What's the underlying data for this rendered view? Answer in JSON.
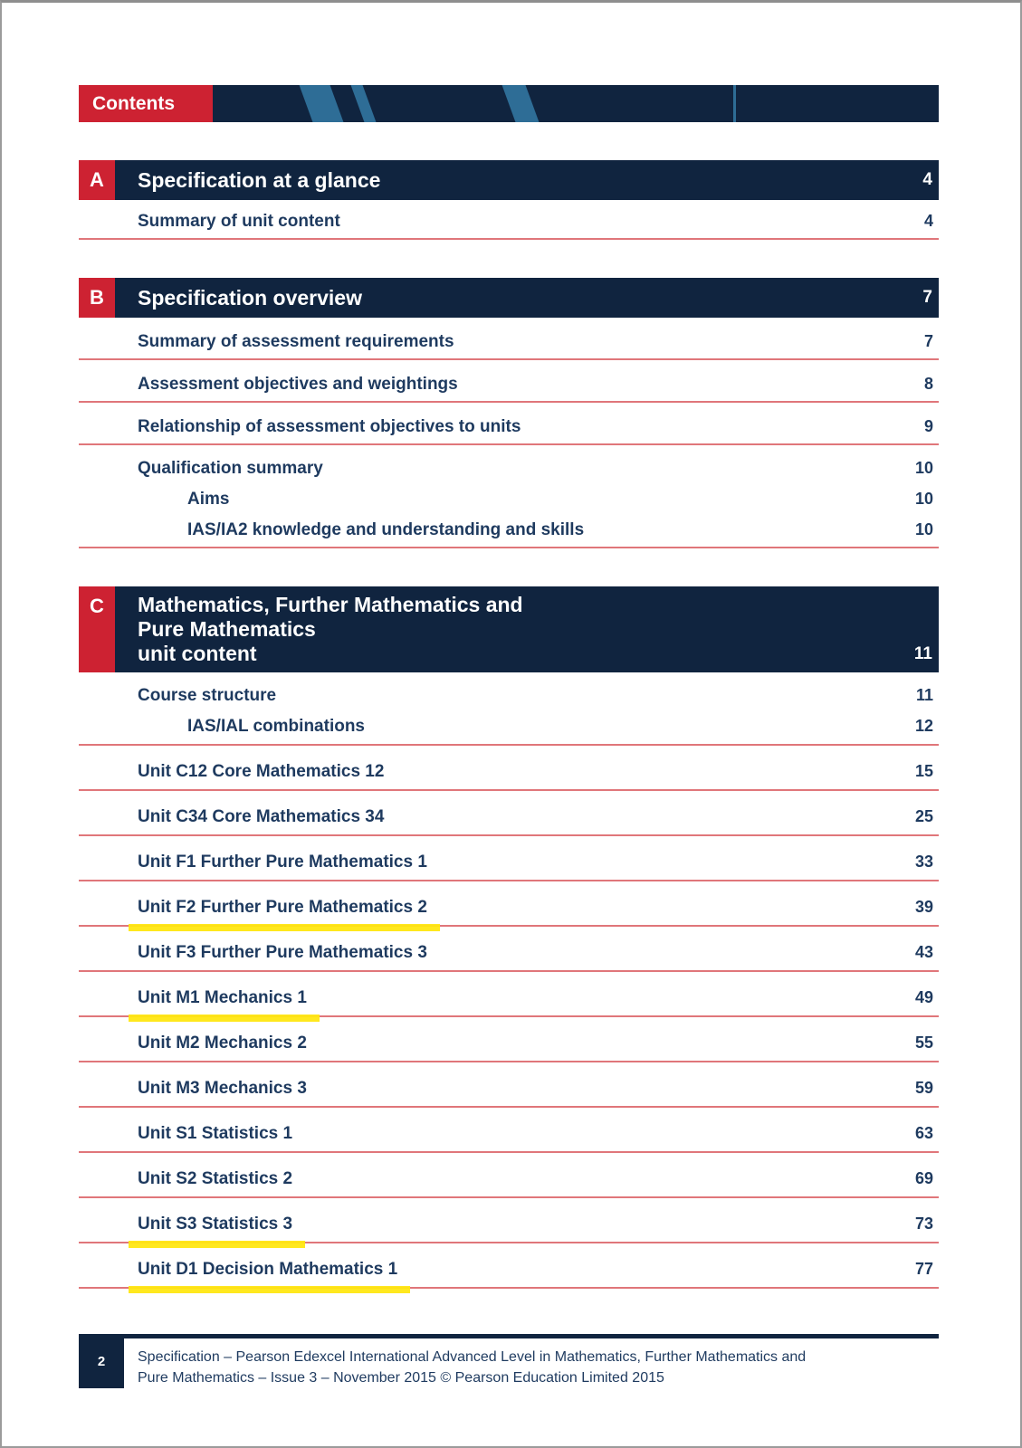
{
  "header": {
    "title": "Contents"
  },
  "colors": {
    "navy": "#10243f",
    "red": "#cd2232",
    "rule_red": "#e0767a",
    "highlight_yellow": "#ffe712",
    "stripe_blue": "#2e6d96",
    "text_navy": "#1e3a5f"
  },
  "sections": [
    {
      "letter": "A",
      "title": "Specification at a glance",
      "title_lines": [
        "Specification at a glance"
      ],
      "page": "4",
      "items": [
        {
          "label": "Summary of unit content",
          "page": "4",
          "indent": 0,
          "underline": true,
          "highlight": false
        }
      ]
    },
    {
      "letter": "B",
      "title": "Specification overview",
      "title_lines": [
        "Specification overview"
      ],
      "page": "7",
      "items": [
        {
          "label": "Summary of assessment requirements",
          "page": "7",
          "indent": 0,
          "underline": true,
          "highlight": false
        },
        {
          "label": "Assessment objectives and weightings",
          "page": "8",
          "indent": 0,
          "underline": true,
          "highlight": false
        },
        {
          "label": "Relationship of assessment objectives to units",
          "page": "9",
          "indent": 0,
          "underline": true,
          "highlight": false
        },
        {
          "label": "Qualification summary",
          "page": "10",
          "indent": 0,
          "underline": false,
          "highlight": false
        },
        {
          "label": "Aims",
          "page": "10",
          "indent": 1,
          "underline": false,
          "highlight": false
        },
        {
          "label": "IAS/IA2 knowledge and understanding and skills",
          "page": "10",
          "indent": 1,
          "underline": true,
          "highlight": false
        }
      ]
    },
    {
      "letter": "C",
      "title": "Mathematics, Further Mathematics and Pure Mathematics unit content",
      "title_lines": [
        "Mathematics, Further Mathematics and Pure Mathematics",
        "unit content"
      ],
      "page": "11",
      "items": [
        {
          "label": "Course structure",
          "page": "11",
          "indent": 0,
          "underline": false,
          "highlight": false
        },
        {
          "label": "IAS/IAL combinations",
          "page": "12",
          "indent": 1,
          "underline": true,
          "highlight": false
        },
        {
          "label": "Unit C12 Core Mathematics 12",
          "page": "15",
          "indent": 0,
          "underline": true,
          "highlight": false
        },
        {
          "label": "Unit C34 Core Mathematics 34",
          "page": "25",
          "indent": 0,
          "underline": true,
          "highlight": false
        },
        {
          "label": "Unit F1 Further Pure Mathematics 1",
          "page": "33",
          "indent": 0,
          "underline": true,
          "highlight": false
        },
        {
          "label": "Unit F2 Further Pure Mathematics 2",
          "page": "39",
          "indent": 0,
          "underline": true,
          "highlight": true
        },
        {
          "label": "Unit F3 Further Pure Mathematics 3",
          "page": "43",
          "indent": 0,
          "underline": true,
          "highlight": false
        },
        {
          "label": "Unit M1 Mechanics 1",
          "page": "49",
          "indent": 0,
          "underline": true,
          "highlight": true
        },
        {
          "label": "Unit M2 Mechanics 2",
          "page": "55",
          "indent": 0,
          "underline": true,
          "highlight": false
        },
        {
          "label": "Unit M3 Mechanics 3",
          "page": "59",
          "indent": 0,
          "underline": true,
          "highlight": false
        },
        {
          "label": "Unit S1 Statistics 1",
          "page": "63",
          "indent": 0,
          "underline": true,
          "highlight": false
        },
        {
          "label": "Unit S2 Statistics 2",
          "page": "69",
          "indent": 0,
          "underline": true,
          "highlight": false
        },
        {
          "label": "Unit S3 Statistics 3",
          "page": "73",
          "indent": 0,
          "underline": true,
          "highlight": true
        },
        {
          "label": "Unit D1 Decision Mathematics 1",
          "page": "77",
          "indent": 0,
          "underline": true,
          "highlight": true
        }
      ]
    }
  ],
  "footer": {
    "page_number": "2",
    "lines": [
      "Specification – Pearson Edexcel International Advanced Level in Mathematics, Further Mathematics and",
      "Pure Mathematics – Issue 3 – November 2015 © Pearson Education Limited 2015"
    ]
  }
}
